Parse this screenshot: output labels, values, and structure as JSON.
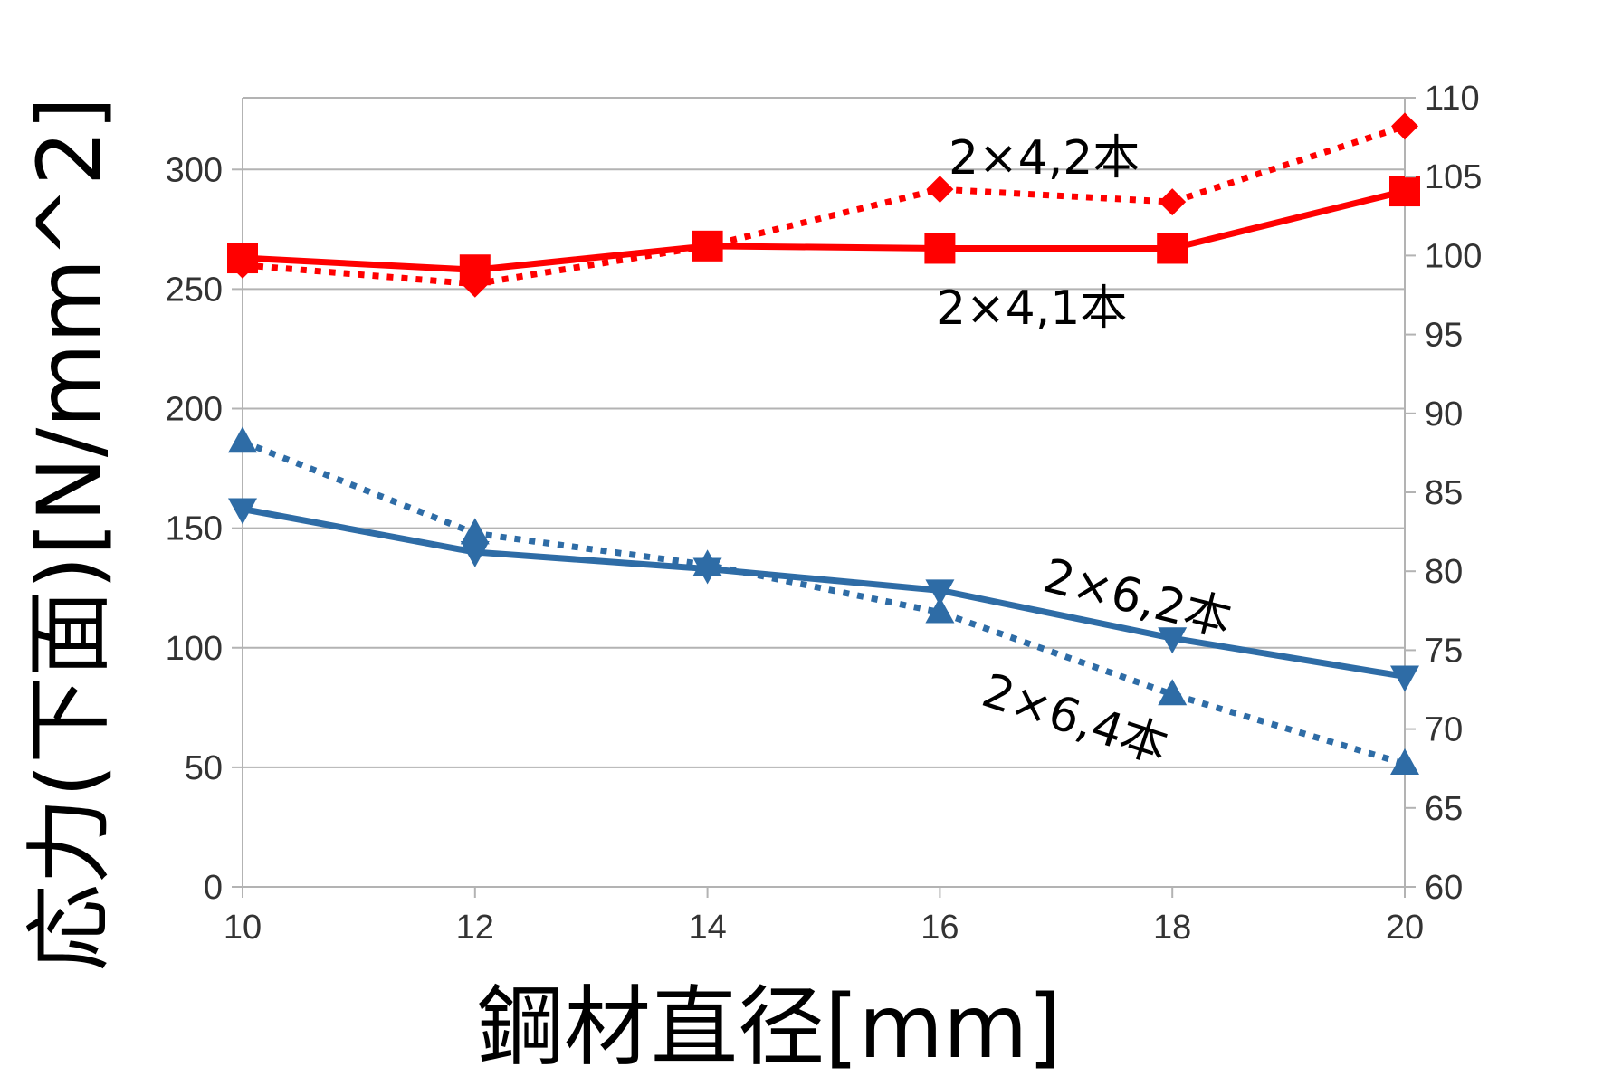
{
  "chart_data": {
    "type": "line",
    "title": "",
    "xlabel": "鋼材直径[mm]",
    "ylabel": "応力(下面)[N/mm^2]",
    "x": [
      10,
      12,
      14,
      16,
      18,
      20
    ],
    "x_ticks": [
      "10",
      "12",
      "14",
      "16",
      "18",
      "20"
    ],
    "xlim": [
      10,
      20
    ],
    "y_left": {
      "lim": [
        0,
        330
      ],
      "ticks": [
        "0",
        "50",
        "100",
        "150",
        "200",
        "250",
        "300"
      ]
    },
    "y_right": {
      "lim": [
        60,
        110
      ],
      "ticks": [
        "60",
        "65",
        "70",
        "75",
        "80",
        "85",
        "90",
        "95",
        "100",
        "105",
        "110"
      ]
    },
    "grid": true,
    "legend": "none",
    "series": [
      {
        "name": "2×4,1本",
        "axis": "left",
        "values": [
          263,
          258,
          268,
          267,
          267,
          291
        ],
        "color": "#ff0000",
        "dash": "solid",
        "marker": "square"
      },
      {
        "name": "2×4,2本",
        "axis": "right",
        "values": [
          99.4,
          98.2,
          100.6,
          104.2,
          103.4,
          108.2
        ],
        "color": "#ff0000",
        "dash": "dotted",
        "marker": "diamond"
      },
      {
        "name": "2×6,2本",
        "axis": "left",
        "values": [
          158,
          140,
          133,
          124,
          104,
          88
        ],
        "color": "#2e6ca6",
        "dash": "solid",
        "marker": "triangle-down"
      },
      {
        "name": "2×6,4本",
        "axis": "right",
        "values": [
          88.2,
          82.4,
          80.4,
          77.4,
          72.2,
          67.8
        ],
        "color": "#2e6ca6",
        "dash": "dotted",
        "marker": "triangle-up"
      }
    ],
    "annotations": [
      "2×4,2本",
      "2×4,1本",
      "2×6,2本",
      "2×6,4本"
    ]
  }
}
